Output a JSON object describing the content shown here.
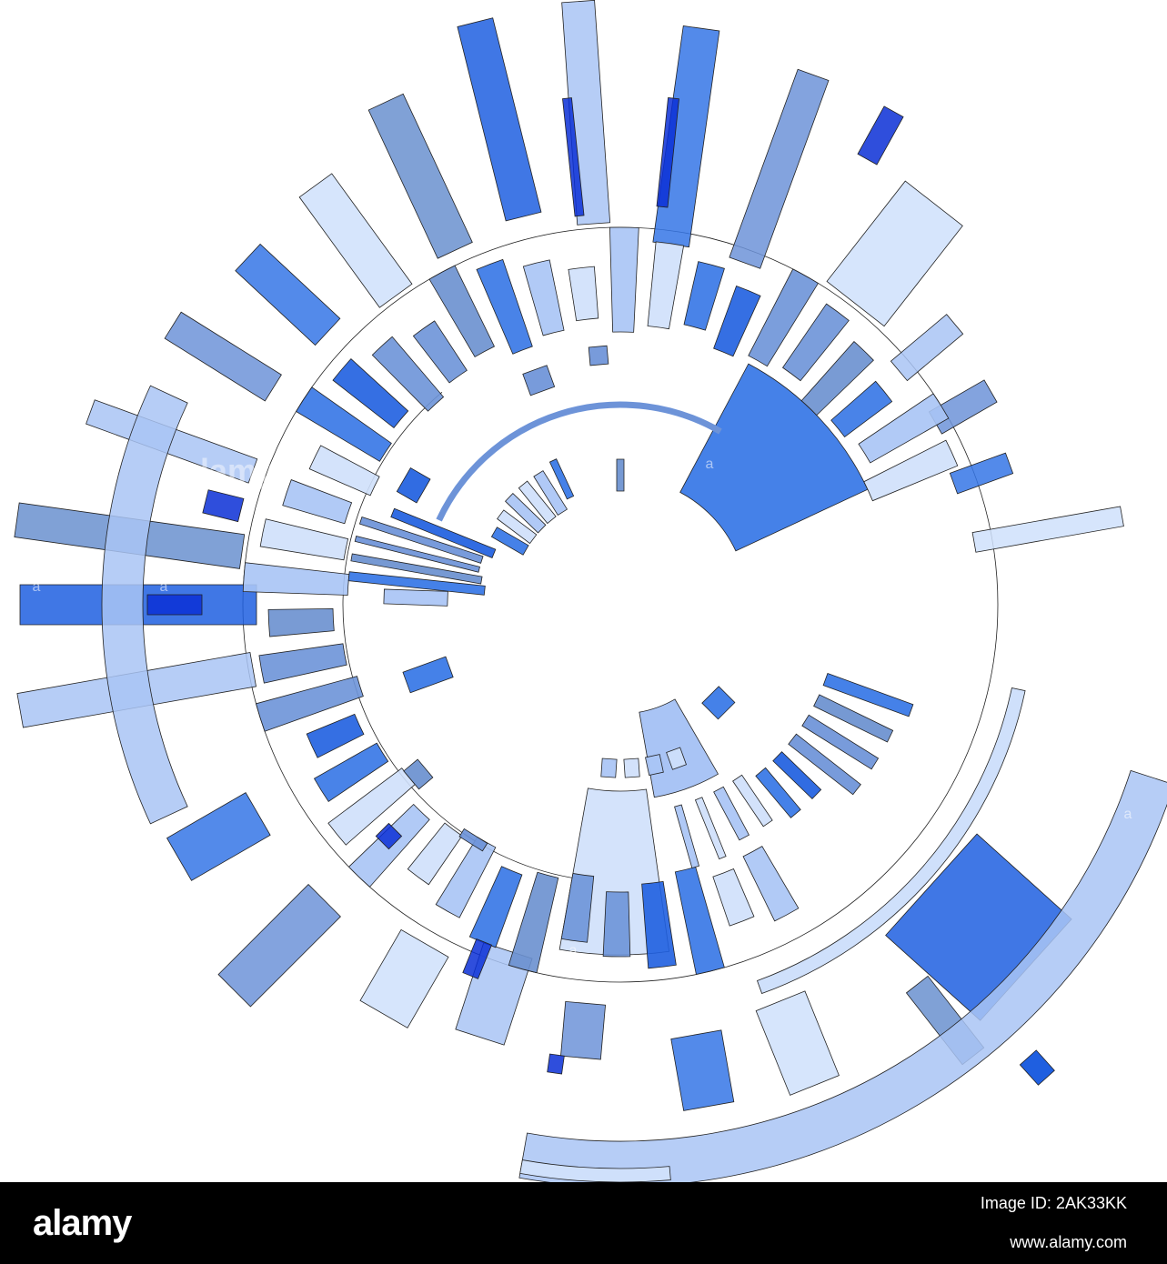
{
  "branding": {
    "logo_text": "alamy",
    "watermark_text": "alamy"
  },
  "footer": {
    "image_id_line": "Image ID: 2AK33KK",
    "url": "www.alamy.com"
  },
  "artwork": {
    "palette": {
      "light": "#a9c4f5",
      "pale": "#cfe0fb",
      "medium": "#6d93d8",
      "steel": "#6a90cf",
      "bright": "#3576e6",
      "royal": "#1f5fe0",
      "deep": "#0a2fd6",
      "cyan": "#1e90ff",
      "outline": "#222222"
    }
  }
}
